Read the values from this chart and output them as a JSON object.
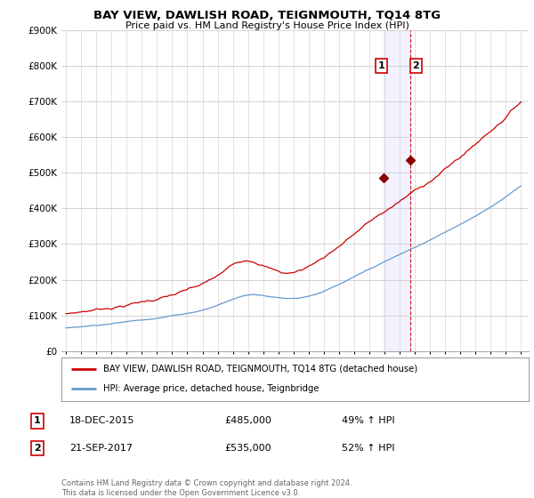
{
  "title": "BAY VIEW, DAWLISH ROAD, TEIGNMOUTH, TQ14 8TG",
  "subtitle": "Price paid vs. HM Land Registry's House Price Index (HPI)",
  "yticks": [
    0,
    100000,
    200000,
    300000,
    400000,
    500000,
    600000,
    700000,
    800000,
    900000
  ],
  "ytick_labels": [
    "£0",
    "£100K",
    "£200K",
    "£300K",
    "£400K",
    "£500K",
    "£600K",
    "£700K",
    "£800K",
    "£900K"
  ],
  "ylim": [
    0,
    870000
  ],
  "xlim_start": 1994.7,
  "xlim_end": 2025.5,
  "xticks": [
    1995,
    1996,
    1997,
    1998,
    1999,
    2000,
    2001,
    2002,
    2003,
    2004,
    2005,
    2006,
    2007,
    2008,
    2009,
    2010,
    2011,
    2012,
    2013,
    2014,
    2015,
    2016,
    2017,
    2018,
    2019,
    2020,
    2021,
    2022,
    2023,
    2024,
    2025
  ],
  "red_line_color": "#cc0000",
  "blue_line_color": "#6699cc",
  "vline_color": "#cc0000",
  "marker1_x": 2015.96,
  "marker1_y": 485000,
  "marker2_x": 2017.72,
  "marker2_y": 535000,
  "vline1_x": 2015.96,
  "vline2_x": 2017.72,
  "ann_y": 800000,
  "legend_red_label": "BAY VIEW, DAWLISH ROAD, TEIGNMOUTH, TQ14 8TG (detached house)",
  "legend_blue_label": "HPI: Average price, detached house, Teignbridge",
  "footer": "Contains HM Land Registry data © Crown copyright and database right 2024.\nThis data is licensed under the Open Government Licence v3.0.",
  "background_color": "#ffffff",
  "grid_color": "#cccccc",
  "span_color": "#ccccff",
  "span_alpha": 0.25
}
